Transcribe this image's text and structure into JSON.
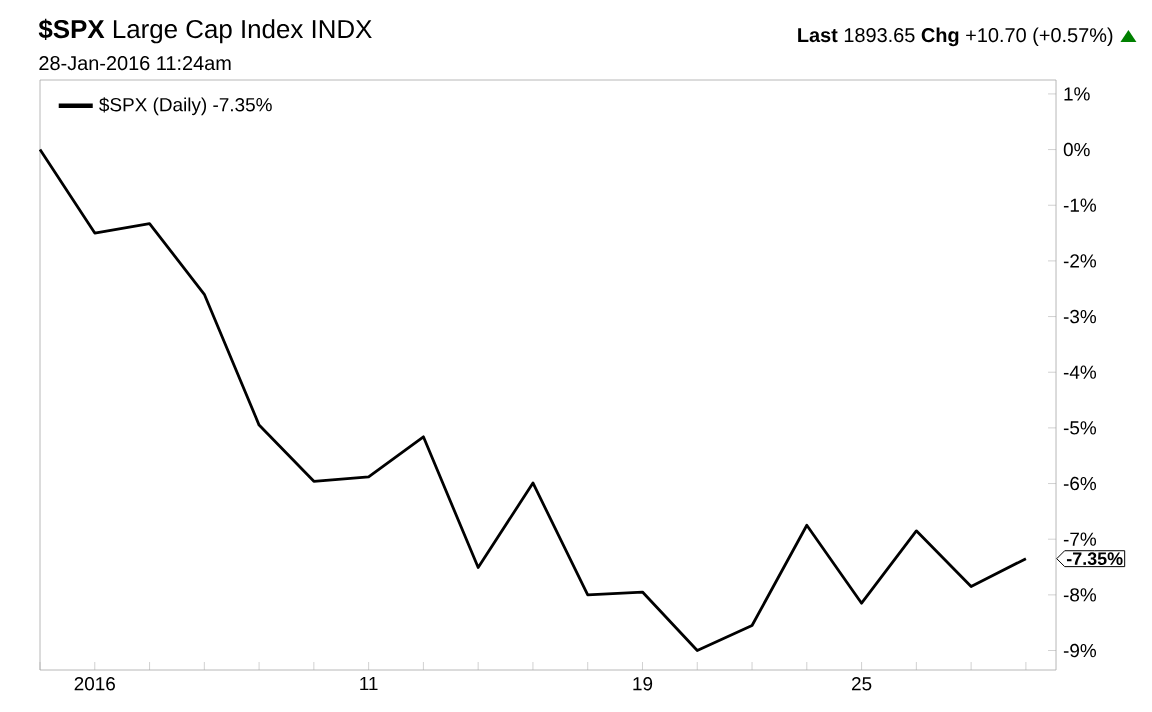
{
  "chart_data": {
    "type": "line",
    "title": "**$SPX** Large Cap Index INDX",
    "subtitle": "28-Jan-2016 11:24am",
    "categories": [
      null,
      "2016",
      null,
      null,
      null,
      null,
      "11",
      null,
      null,
      null,
      null,
      "19",
      null,
      null,
      null,
      "25",
      null,
      null,
      null
    ],
    "series": [
      {
        "name": "$SPX (Daily) -7.35%",
        "color": "#000000",
        "values": [
          0,
          -1.5,
          -1.33,
          -2.6,
          -4.95,
          -5.96,
          -5.88,
          -5.16,
          -7.51,
          -5.99,
          -8.0,
          -7.95,
          -9.0,
          -8.55,
          -6.75,
          -8.15,
          -6.85,
          -7.85,
          -7.35
        ]
      }
    ],
    "ylim": [
      -9.35,
      1.25
    ],
    "yticks": [
      {
        "value": 1,
        "label": "1%"
      },
      {
        "value": 0,
        "label": "0%"
      },
      {
        "value": -1,
        "label": "-1%"
      },
      {
        "value": -2,
        "label": "-2%"
      },
      {
        "value": -3,
        "label": "-3%"
      },
      {
        "value": -4,
        "label": "-4%"
      },
      {
        "value": -5,
        "label": "-5%"
      },
      {
        "value": -6,
        "label": "-6%"
      },
      {
        "value": -7,
        "label": "-7%"
      },
      {
        "value": -8,
        "label": "-8%"
      },
      {
        "value": -9,
        "label": "-9%"
      }
    ],
    "annotations": [
      "**Last** 1893.65  **Chg** +10.70 (+0.57%)",
      "-7.35%"
    ],
    "legend": "top left",
    "grid": false,
    "marker": "none",
    "line_style": "solid"
  }
}
